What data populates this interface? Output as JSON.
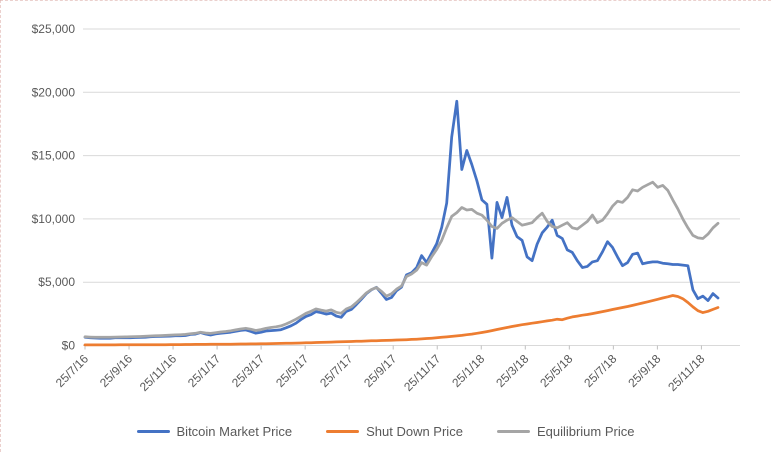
{
  "chart_data": {
    "type": "line",
    "title": "",
    "xlabel": "",
    "ylabel": "",
    "ylim": [
      0,
      25000
    ],
    "y_tick_step": 5000,
    "y_tick_labels": [
      "$0",
      "$5,000",
      "$10,000",
      "$15,000",
      "$20,000",
      "$25,000"
    ],
    "x_tick_labels": [
      "25/7/16",
      "25/9/16",
      "25/11/16",
      "25/1/17",
      "25/3/17",
      "25/5/17",
      "25/7/17",
      "25/9/17",
      "25/11/17",
      "25/1/18",
      "25/3/18",
      "25/5/18",
      "25/7/18",
      "25/9/18",
      "25/11/18"
    ],
    "x_unit": "weekly samples from 25/7/16 to late Dec 2018",
    "grid": "horizontal",
    "legend_position": "bottom",
    "colors": {
      "grid": "#D9D9D9",
      "axis": "#BFBFBF",
      "text": "#595959"
    },
    "series": [
      {
        "name": "Bitcoin Market Price",
        "color": "#4472C4",
        "values": [
          655,
          620,
          595,
          575,
          580,
          575,
          605,
          610,
          605,
          615,
          635,
          640,
          650,
          685,
          710,
          715,
          730,
          745,
          765,
          770,
          790,
          875,
          900,
          1020,
          905,
          830,
          920,
          965,
          1005,
          1050,
          1125,
          1190,
          1230,
          1115,
          975,
          1045,
          1145,
          1180,
          1210,
          1250,
          1400,
          1560,
          1760,
          2050,
          2300,
          2440,
          2680,
          2590,
          2480,
          2560,
          2330,
          2230,
          2690,
          2840,
          3230,
          3650,
          4090,
          4400,
          4600,
          4130,
          3630,
          3790,
          4330,
          4610,
          5580,
          5740,
          6150,
          7100,
          6560,
          7290,
          8040,
          9330,
          11250,
          16470,
          19300,
          13900,
          15400,
          14300,
          13000,
          11500,
          11150,
          6900,
          11300,
          10100,
          11700,
          9500,
          8600,
          8300,
          7000,
          6700,
          8000,
          8900,
          9350,
          9900,
          8700,
          8450,
          7550,
          7350,
          6700,
          6150,
          6250,
          6600,
          6700,
          7400,
          8200,
          7750,
          7000,
          6300,
          6550,
          7200,
          7300,
          6450,
          6550,
          6600,
          6600,
          6500,
          6450,
          6400,
          6400,
          6350,
          6300,
          4400,
          3700,
          3900,
          3550,
          4100,
          3750
        ]
      },
      {
        "name": "Shut Down Price",
        "color": "#ED7D31",
        "values": [
          50,
          48,
          47,
          48,
          50,
          49,
          51,
          52,
          53,
          55,
          56,
          58,
          60,
          62,
          63,
          65,
          67,
          70,
          72,
          75,
          78,
          80,
          83,
          86,
          89,
          92,
          95,
          98,
          102,
          106,
          110,
          115,
          120,
          125,
          130,
          136,
          142,
          149,
          156,
          163,
          171,
          180,
          190,
          200,
          211,
          222,
          234,
          246,
          258,
          270,
          282,
          294,
          306,
          318,
          330,
          342,
          355,
          368,
          380,
          392,
          405,
          418,
          432,
          446,
          460,
          480,
          500,
          525,
          550,
          580,
          610,
          645,
          680,
          720,
          760,
          800,
          850,
          900,
          960,
          1030,
          1100,
          1180,
          1260,
          1340,
          1420,
          1500,
          1570,
          1640,
          1700,
          1760,
          1820,
          1880,
          1940,
          2000,
          2080,
          2040,
          2160,
          2260,
          2320,
          2390,
          2450,
          2520,
          2600,
          2680,
          2760,
          2840,
          2920,
          3000,
          3080,
          3170,
          3260,
          3360,
          3450,
          3550,
          3650,
          3750,
          3850,
          3950,
          3870,
          3700,
          3400,
          3050,
          2750,
          2600,
          2700,
          2850,
          3000
        ]
      },
      {
        "name": "Equilibrium Price",
        "color": "#A5A5A5",
        "values": [
          690,
          665,
          650,
          645,
          650,
          655,
          665,
          672,
          678,
          688,
          700,
          712,
          725,
          748,
          770,
          782,
          800,
          820,
          840,
          855,
          875,
          930,
          960,
          1050,
          985,
          955,
          1010,
          1065,
          1105,
          1160,
          1230,
          1300,
          1360,
          1285,
          1185,
          1255,
          1350,
          1420,
          1480,
          1545,
          1700,
          1880,
          2080,
          2310,
          2540,
          2700,
          2890,
          2800,
          2720,
          2810,
          2620,
          2545,
          2880,
          3050,
          3380,
          3750,
          4150,
          4420,
          4580,
          4280,
          3900,
          4080,
          4450,
          4700,
          5450,
          5650,
          5950,
          6550,
          6350,
          7000,
          7600,
          8300,
          9300,
          10200,
          10500,
          10900,
          10700,
          10750,
          10450,
          10300,
          9900,
          9400,
          9250,
          9650,
          9900,
          10100,
          9800,
          9500,
          9600,
          9700,
          10100,
          10450,
          9800,
          9400,
          9300,
          9500,
          9700,
          9300,
          9200,
          9500,
          9800,
          10300,
          9700,
          9900,
          10400,
          11000,
          11400,
          11300,
          11700,
          12300,
          12200,
          12500,
          12700,
          12900,
          12500,
          12650,
          12250,
          11500,
          10800,
          10000,
          9300,
          8700,
          8500,
          8450,
          8800,
          9300,
          9650
        ]
      }
    ]
  }
}
